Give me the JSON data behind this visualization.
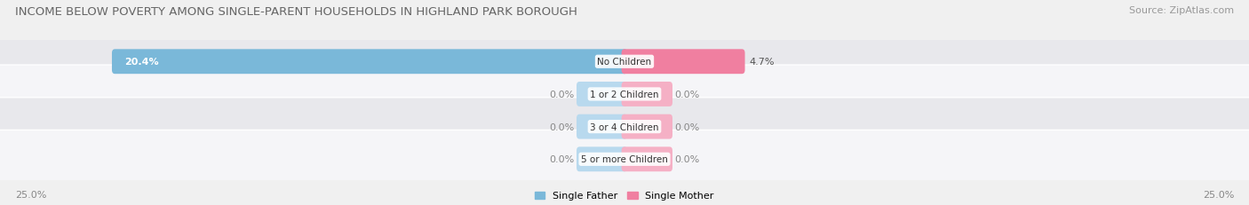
{
  "title": "INCOME BELOW POVERTY AMONG SINGLE-PARENT HOUSEHOLDS IN HIGHLAND PARK BOROUGH",
  "source": "Source: ZipAtlas.com",
  "categories": [
    "No Children",
    "1 or 2 Children",
    "3 or 4 Children",
    "5 or more Children"
  ],
  "single_father": [
    20.4,
    0.0,
    0.0,
    0.0
  ],
  "single_mother": [
    4.7,
    0.0,
    0.0,
    0.0
  ],
  "axis_max": 25.0,
  "axis_label_left": "25.0%",
  "axis_label_right": "25.0%",
  "color_father": "#7ab8d9",
  "color_mother": "#f07fa0",
  "color_father_light": "#b8d9ee",
  "color_mother_light": "#f5b0c5",
  "bg_color": "#f0f0f0",
  "row_bg_odd": "#e8e8ec",
  "row_bg_even": "#f5f5f8",
  "title_fontsize": 9.5,
  "source_fontsize": 8,
  "label_fontsize": 8,
  "category_fontsize": 7.5,
  "legend_fontsize": 8,
  "stub_size": 1.8
}
